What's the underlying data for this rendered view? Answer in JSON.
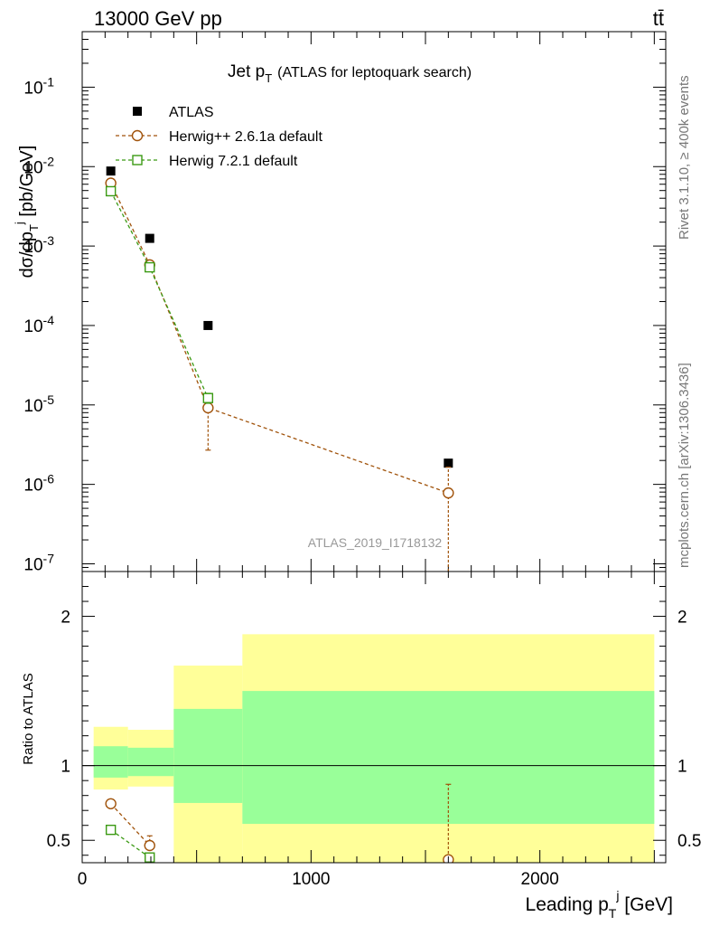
{
  "header": {
    "left": "13000 GeV pp",
    "right": "tt̄"
  },
  "side_labels": {
    "rivet": "Rivet 3.1.10, ≥ 400k events",
    "mcplots": "mcplots.cern.ch [arXiv:1306.3436]"
  },
  "chart_data": [
    {
      "type": "scatter",
      "title": "Jet p_T (ATLAS for leptoquark search)",
      "title_main": "Jet p",
      "title_sub": "T",
      "title_tail": "(ATLAS for leptoquark search)",
      "ylabel": "dσ/dp_T^j [pb/GeV]",
      "ylabel_parts": {
        "a": "dσ/dp",
        "b": "T",
        "c": "j",
        "d": " [pb/GeV]"
      },
      "yscale": "log",
      "xlim": [
        0,
        2550
      ],
      "ylim": [
        8e-08,
        0.5
      ],
      "ytick_labels": [
        {
          "value": 1e-07,
          "base": "10",
          "exp": "-7"
        },
        {
          "value": 1e-06,
          "base": "10",
          "exp": "-6"
        },
        {
          "value": 1e-05,
          "base": "10",
          "exp": "-5"
        },
        {
          "value": 0.0001,
          "base": "10",
          "exp": "-4"
        },
        {
          "value": 0.001,
          "base": "10",
          "exp": "-3"
        },
        {
          "value": 0.01,
          "base": "10",
          "exp": "-2"
        },
        {
          "value": 0.1,
          "base": "10",
          "exp": "-1"
        }
      ],
      "watermark": "ATLAS_2019_I1718132",
      "legend_position": "top-left",
      "series": [
        {
          "name": "ATLAS",
          "marker": "filled-square",
          "color": "#000000",
          "x": [
            125,
            295,
            550,
            1600
          ],
          "y": [
            0.0088,
            0.00125,
            0.0001,
            1.85e-06
          ]
        },
        {
          "name": "Herwig++ 2.6.1a default",
          "marker": "open-circle",
          "line": "dashed",
          "color": "#a0520a",
          "x": [
            125,
            295,
            550,
            1600
          ],
          "y": [
            0.0062,
            0.00058,
            9.2e-06,
            7.8e-07
          ],
          "yerr_low": [
            0.0058,
            0.00052,
            2.7e-06,
            5e-08
          ],
          "yerr_high": [
            0.0066,
            0.00064,
            1.25e-05,
            1.65e-06
          ]
        },
        {
          "name": "Herwig 7.2.1 default",
          "marker": "open-square",
          "line": "dashed",
          "color": "#3b9a14",
          "x": [
            125,
            295,
            550
          ],
          "y": [
            0.0049,
            0.00054,
            1.22e-05
          ],
          "yerr_low": [
            0.0047,
            0.00051,
            1.05e-05
          ],
          "yerr_high": [
            0.0051,
            0.00057,
            1.4e-05
          ]
        }
      ]
    },
    {
      "type": "scatter",
      "ylabel": "Ratio to ATLAS",
      "xlabel": "Leading p_T^j [GeV]",
      "xlabel_parts": {
        "a": "Leading p",
        "b": "T",
        "c": "j",
        "d": " [GeV]"
      },
      "xlim": [
        0,
        2550
      ],
      "ylim": [
        0.35,
        2.3
      ],
      "xticks": [
        0,
        1000,
        2000
      ],
      "xtick_labels": [
        "0",
        "1000",
        "2000"
      ],
      "yticks": [
        0.5,
        1,
        2
      ],
      "ytick_labels": [
        "0.5",
        "1",
        "2"
      ],
      "reference_line": 1,
      "bands": [
        {
          "x0": 50,
          "x1": 200,
          "yellow": [
            0.84,
            1.26
          ],
          "green": [
            0.92,
            1.13
          ]
        },
        {
          "x0": 200,
          "x1": 400,
          "yellow": [
            0.86,
            1.24
          ],
          "green": [
            0.93,
            1.12
          ]
        },
        {
          "x0": 400,
          "x1": 700,
          "yellow": [
            0.35,
            1.67
          ],
          "green": [
            0.75,
            1.38
          ]
        },
        {
          "x0": 700,
          "x1": 2500,
          "yellow": [
            0.35,
            1.88
          ],
          "green": [
            0.61,
            1.5
          ]
        }
      ],
      "band_colors": {
        "yellow": "#ffff99",
        "green": "#99ff99"
      },
      "series": [
        {
          "name": "Herwig++ 2.6.1a default",
          "marker": "open-circle",
          "line": "dashed",
          "color": "#a0520a",
          "x": [
            125,
            295,
            1600
          ],
          "y": [
            0.745,
            0.465,
            0.37
          ],
          "yerr_low": [
            0.725,
            0.4,
            0.35
          ],
          "yerr_high": [
            0.765,
            0.53,
            0.875
          ]
        },
        {
          "name": "Herwig 7.2.1 default",
          "marker": "open-square",
          "line": "dashed",
          "color": "#3b9a14",
          "x": [
            125,
            295
          ],
          "y": [
            0.57,
            0.385
          ],
          "yerr_low": [
            0.56,
            0.36
          ],
          "yerr_high": [
            0.58,
            0.41
          ]
        }
      ]
    }
  ]
}
